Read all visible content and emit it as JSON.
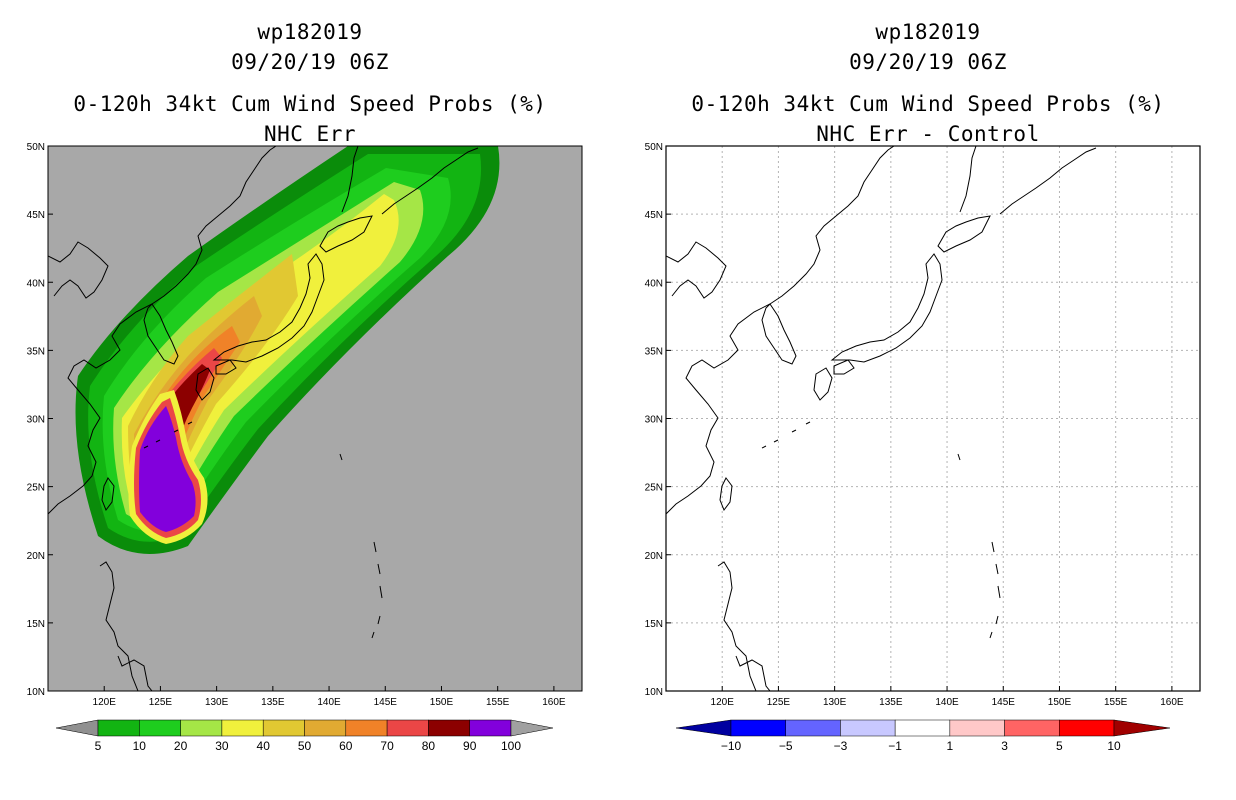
{
  "left": {
    "storm_id": "wp182019",
    "datetime": "09/20/19 06Z",
    "title": "0-120h 34kt Cum Wind Speed Probs (%)",
    "subtitle": "NHC Err",
    "background": "#a8a8a8",
    "colorbar_labels": [
      "5",
      "10",
      "20",
      "30",
      "40",
      "50",
      "60",
      "70",
      "80",
      "90",
      "100"
    ],
    "colorbar_colors": [
      "#0a8c0a",
      "#12b412",
      "#1ecd1e",
      "#a5e646",
      "#f0f03c",
      "#e1c832",
      "#e1aa32",
      "#f08228",
      "#eb4646",
      "#8c0000",
      "#8200dc"
    ],
    "colorbar_end_colors": [
      "#909090",
      "#a0a0a0"
    ]
  },
  "right": {
    "storm_id": "wp182019",
    "datetime": "09/20/19 06Z",
    "title": "0-120h 34kt Cum Wind Speed Probs (%)",
    "subtitle": "NHC Err - Control",
    "background": "#ffffff",
    "colorbar_labels": [
      "−10",
      "−5",
      "−3",
      "−1",
      "1",
      "3",
      "5",
      "10"
    ],
    "colorbar_colors": [
      "#0000a0",
      "#0000ff",
      "#6464ff",
      "#c8c8ff",
      "#ffffff",
      "#ffc8c8",
      "#ff6464",
      "#ff0000",
      "#a00000"
    ]
  },
  "axes": {
    "lat_labels": [
      "10N",
      "15N",
      "20N",
      "25N",
      "30N",
      "35N",
      "40N",
      "45N",
      "50N"
    ],
    "lon_labels": [
      "120E",
      "125E",
      "130E",
      "135E",
      "140E",
      "145E",
      "150E",
      "155E",
      "160E"
    ]
  },
  "icons": {
    "coastline": "coastline-icon",
    "probability_swath": "probability-swath-icon"
  }
}
